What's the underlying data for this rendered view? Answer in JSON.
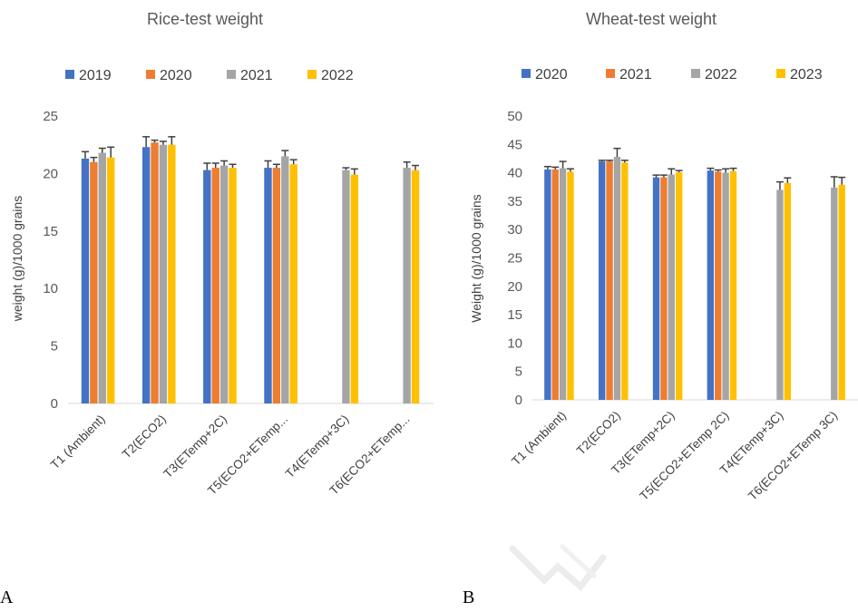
{
  "panels": [
    "A",
    "B"
  ],
  "chart_data": [
    {
      "type": "bar",
      "title": "Rice-test weight",
      "ylabel": "weight (g)/1000 grains",
      "xlabel": "",
      "ylim": [
        0,
        25
      ],
      "yticks": [
        0,
        5,
        10,
        15,
        20,
        25
      ],
      "legend": "top",
      "categories": [
        "T1 (Ambient)",
        "T2(ECO2)",
        "T3(ETemp+2C)",
        "T5(ECO2+ETemp...",
        "T4(ETemp+3C)",
        "T6(ECO2+ETemp..."
      ],
      "series": [
        {
          "name": "2019",
          "color": "#4472C4",
          "values": [
            21.3,
            22.3,
            20.3,
            20.5,
            null,
            null
          ],
          "errors": [
            0.6,
            0.9,
            0.6,
            0.6,
            null,
            null
          ]
        },
        {
          "name": "2020",
          "color": "#ED7D31",
          "values": [
            21.0,
            22.7,
            20.5,
            20.5,
            null,
            null
          ],
          "errors": [
            0.4,
            0.2,
            0.4,
            0.3,
            null,
            null
          ]
        },
        {
          "name": "2021",
          "color": "#A5A5A5",
          "values": [
            21.8,
            22.5,
            20.7,
            21.5,
            20.3,
            20.5
          ],
          "errors": [
            0.4,
            0.3,
            0.4,
            0.5,
            0.2,
            0.5
          ]
        },
        {
          "name": "2022",
          "color": "#FFC000",
          "values": [
            21.4,
            22.5,
            20.5,
            20.8,
            19.9,
            20.3
          ],
          "errors": [
            0.9,
            0.7,
            0.3,
            0.4,
            0.5,
            0.4
          ]
        }
      ]
    },
    {
      "type": "bar",
      "title": "Wheat-test weight",
      "ylabel": "Weight (g)/1000 grains",
      "xlabel": "",
      "ylim": [
        0,
        50
      ],
      "yticks": [
        0,
        5,
        10,
        15,
        20,
        25,
        30,
        35,
        40,
        45,
        50
      ],
      "legend": "top",
      "categories": [
        "T1 (Ambient)",
        "T2(ECO2)",
        "T3(ETemp+2C)",
        "T5(ECO2+ETemp 2C)",
        "T4(ETemp+3C)",
        "T6(ECO2+ETemp 3C)"
      ],
      "series": [
        {
          "name": "2020",
          "color": "#4472C4",
          "values": [
            40.6,
            42.0,
            39.2,
            40.4,
            null,
            null
          ],
          "errors": [
            0.5,
            0.2,
            0.4,
            0.4,
            null,
            null
          ]
        },
        {
          "name": "2021",
          "color": "#ED7D31",
          "values": [
            40.6,
            42.0,
            39.2,
            40.2,
            null,
            null
          ],
          "errors": [
            0.4,
            0.2,
            0.4,
            0.3,
            null,
            null
          ]
        },
        {
          "name": "2022",
          "color": "#A5A5A5",
          "values": [
            40.8,
            42.8,
            39.7,
            40.0,
            37.0,
            37.4
          ],
          "errors": [
            1.2,
            1.5,
            1.0,
            0.7,
            1.4,
            1.9
          ]
        },
        {
          "name": "2023",
          "color": "#FFC000",
          "values": [
            40.2,
            41.8,
            40.1,
            40.3,
            38.2,
            37.9
          ],
          "errors": [
            0.5,
            0.4,
            0.3,
            0.5,
            0.9,
            1.3
          ]
        }
      ]
    }
  ]
}
